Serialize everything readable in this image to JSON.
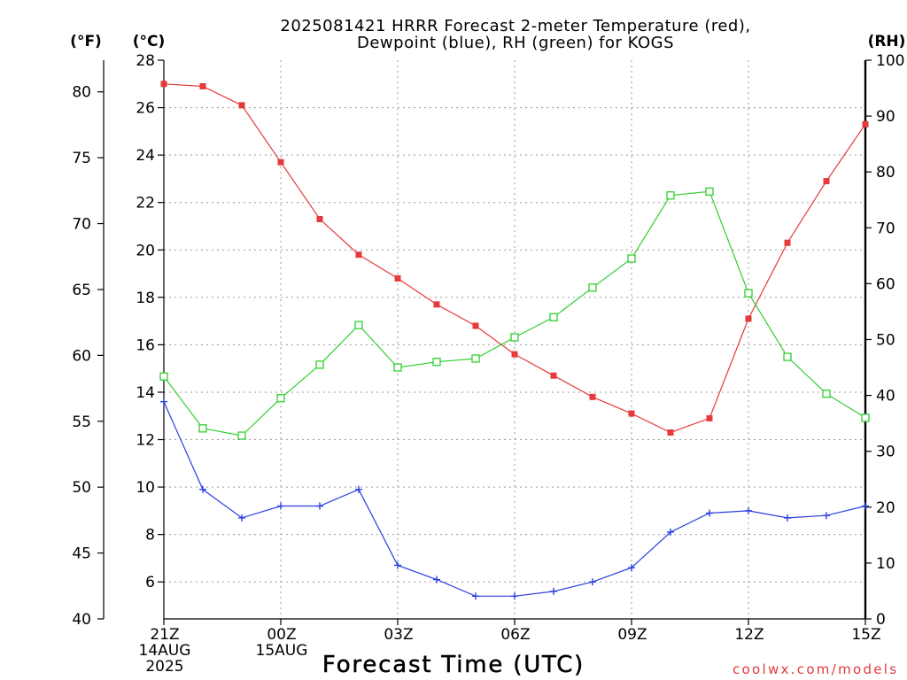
{
  "chart_data": {
    "type": "line",
    "title": [
      "2025081421 HRRR Forecast 2-meter Temperature (red),",
      "Dewpoint (blue), RH (green) for KOGS"
    ],
    "xlabel": "Forecast Time (UTC)",
    "x": [
      21,
      22,
      23,
      0,
      1,
      2,
      3,
      4,
      5,
      6,
      7,
      8,
      9,
      10,
      11,
      12,
      13,
      14,
      15
    ],
    "x_ticks": [
      {
        "label": "21Z",
        "date": [
          "14AUG",
          "2025"
        ]
      },
      {
        "label": "00Z",
        "date": [
          "15AUG"
        ]
      },
      {
        "label": "03Z"
      },
      {
        "label": "06Z"
      },
      {
        "label": "09Z"
      },
      {
        "label": "12Z"
      },
      {
        "label": "15Z"
      }
    ],
    "y_axes": {
      "fahrenheit": {
        "label": "(°F)",
        "range": [
          40,
          82.4
        ],
        "ticks": [
          40,
          45,
          50,
          55,
          60,
          65,
          70,
          75,
          80
        ]
      },
      "celsius": {
        "label": "(°C)",
        "range": [
          4.44,
          28
        ],
        "ticks": [
          6,
          8,
          10,
          12,
          14,
          16,
          18,
          20,
          22,
          24,
          26,
          28
        ]
      },
      "rh": {
        "label": "(RH)",
        "range": [
          0,
          100
        ],
        "ticks": [
          0,
          10,
          20,
          30,
          40,
          50,
          60,
          70,
          80,
          90,
          100
        ]
      }
    },
    "grid": true,
    "series": [
      {
        "color": "#e6393b",
        "values": [
          27.0,
          26.9,
          26.1,
          23.7,
          21.3,
          19.8,
          18.8,
          17.7,
          16.8,
          15.6,
          14.7,
          13.8,
          13.1,
          12.3,
          12.9,
          17.1,
          20.3,
          22.9,
          25.3
        ]
      },
      {
        "color": "#2a3fe0",
        "values": [
          13.6,
          9.9,
          8.7,
          9.2,
          9.2,
          9.9,
          6.7,
          6.1,
          5.4,
          5.4,
          5.6,
          6.0,
          6.6,
          8.1,
          8.9,
          9.0,
          8.7,
          8.8,
          9.2
        ]
      },
      {
        "color": "#2fcf2f",
        "values": [
          43.4,
          34.1,
          32.8,
          39.5,
          45.5,
          52.6,
          45.0,
          46.0,
          46.6,
          50.4,
          54.0,
          59.3,
          64.5,
          75.8,
          76.5,
          58.3,
          46.9,
          40.3,
          36.0
        ]
      }
    ],
    "annotations": [
      "coolwx.com/models"
    ]
  }
}
